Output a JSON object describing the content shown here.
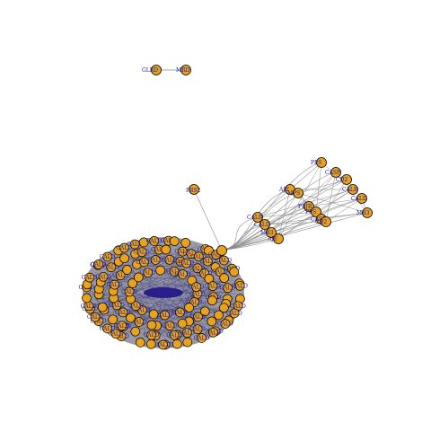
{
  "graph": {
    "node_fill": "#e8a21e",
    "node_stroke": "#000000",
    "label_color": "#1e1aa6",
    "edge_color": "#8a8a8a",
    "pair": {
      "left_label": "GLRD",
      "right_label": "MRD"
    },
    "isolated_label": "PRS2",
    "right_cluster_labels": [
      "PPS",
      "CASP",
      "CD2",
      "CALR",
      "CALD",
      "MR3",
      "AJE",
      "MPS",
      "PBJR"
    ],
    "main_cluster": {
      "dense": true,
      "hub_label": "CALD"
    }
  }
}
